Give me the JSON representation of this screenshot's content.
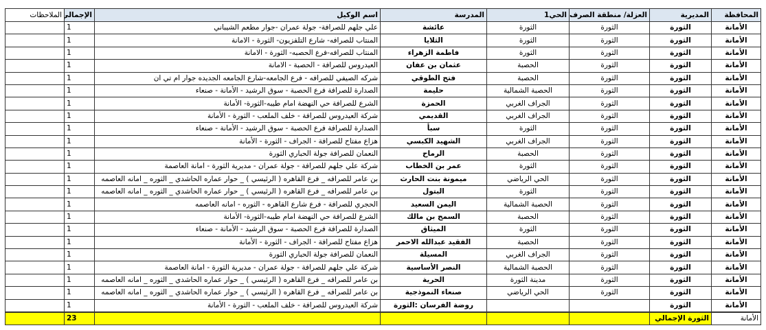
{
  "headers": {
    "governorate": "المحافظة",
    "district": "المديرية",
    "area": "العزلة/ منطقة الصرف",
    "neighborhood": "الحي1",
    "school": "المدرسة",
    "agent": "اسم الوكيل",
    "total": "الإجمالي",
    "notes": "الملاحظات"
  },
  "rows": [
    {
      "governorate": "الأمانة",
      "district": "الثورة",
      "area": "الثورة",
      "neighborhood": "الثورة",
      "school": "عائشة",
      "agent": "علي جلهم للصرافة- جولة عمران -جوار مطعم الشيباني",
      "total": "1",
      "notes": ""
    },
    {
      "governorate": "الأمانة",
      "district": "الثورة",
      "area": "الثورة",
      "neighborhood": "الثورة",
      "school": "الثلايا",
      "agent": "المنتاب للصرافه- شارع التلفزيون- الثورة - الامانة",
      "total": "1",
      "notes": ""
    },
    {
      "governorate": "الأمانة",
      "district": "الثورة",
      "area": "الثورة",
      "neighborhood": "الثورة",
      "school": "فاطمة الزهراء",
      "agent": "المنتاب للصرافه-فرع الحصبه- الثورة - الامانة",
      "total": "1",
      "notes": ""
    },
    {
      "governorate": "الأمانة",
      "district": "الثورة",
      "area": "الثورة",
      "neighborhood": "الحصبة",
      "school": "عثمان بن عفان",
      "agent": "العيدروس للصرافة - الحصبة - الامانة",
      "total": "1",
      "notes": ""
    },
    {
      "governorate": "الأمانة",
      "district": "الثورة",
      "area": "الثورة",
      "neighborhood": "الحصبة",
      "school": "فتح الطوقي",
      "agent": "شركه الصيفي للصرافه - فرع الجامعه-شارع الجامعه الجديده  جوار ام تي ان",
      "total": "1",
      "notes": ""
    },
    {
      "governorate": "الأمانة",
      "district": "الثورة",
      "area": "الثورة",
      "neighborhood": "الحصبة الشمالية",
      "school": "حليمة",
      "agent": "الصدارة للصرافة فرع الحصبة - سوق الرشيد - الأمانة - صنعاء",
      "total": "1",
      "notes": ""
    },
    {
      "governorate": "الأمانة",
      "district": "الثورة",
      "area": "الثورة",
      "neighborhood": "الجراف الغربي",
      "school": "الحمزة",
      "agent": "الشرع للصرافة حي النهضة امام طيبه-الثورة- الأمانة",
      "total": "1",
      "notes": ""
    },
    {
      "governorate": "الأمانة",
      "district": "الثورة",
      "area": "الثورة",
      "neighborhood": "الجراف الغربي",
      "school": "القديمي",
      "agent": "شركة العيدروس للصرافة - خلف الملعب - الثورة - الأمانة",
      "total": "1",
      "notes": ""
    },
    {
      "governorate": "الأمانة",
      "district": "الثورة",
      "area": "الثورة",
      "neighborhood": "الثورة",
      "school": "سبأ",
      "agent": "الصدارة للصرافة فرع الحصبة - سوق الرشيد - الأمانة - صنعاء",
      "total": "1",
      "notes": ""
    },
    {
      "governorate": "الأمانة",
      "district": "الثورة",
      "area": "الثورة",
      "neighborhood": "الجراف الغربي",
      "school": "الشهيد الكبسي",
      "agent": "هزاع مفتاح للصرافة - الجراف - الثورة - الأمانة",
      "total": "1",
      "notes": ""
    },
    {
      "governorate": "الأمانة",
      "district": "الثورة",
      "area": "الثورة",
      "neighborhood": "الحصبة",
      "school": "الرماح",
      "agent": "النعمان للصرافة جولة الحباري الثورة",
      "total": "1",
      "notes": ""
    },
    {
      "governorate": "الأمانة",
      "district": "الثورة",
      "area": "الثورة",
      "neighborhood": "الثورة",
      "school": "عمر بن الخطاب",
      "agent": "شركة علي جلهم للصرافة - جولة عمران - مديرية الثورة - امانة العاصمة",
      "total": "1",
      "notes": ""
    },
    {
      "governorate": "الأمانة",
      "district": "الثورة",
      "area": "الثورة",
      "neighborhood": "الحي الرياضي",
      "school": "ميمونة بنت الحارث",
      "agent": "بن عامر للصرافه _ فرع القاهره ( الرئيسي ) _ حوار عماره الحاشدي _ الثوره _ امانه العاصمه",
      "total": "1",
      "notes": ""
    },
    {
      "governorate": "الأمانة",
      "district": "الثورة",
      "area": "الثورة",
      "neighborhood": "الثورة",
      "school": "البتول",
      "agent": "بن عامر للصرافه _ فرع القاهره ( الرئيسي ) _ حوار عماره الحاشدي _ الثوره _ امانه العاصمه",
      "total": "1",
      "notes": ""
    },
    {
      "governorate": "الأمانة",
      "district": "الثورة",
      "area": "الثورة",
      "neighborhood": "الحصبة الشمالية",
      "school": "اليمن السعيد",
      "agent": "الحجري للصرافة - فرع شارع القاهره - الثوره - امانه العاصمه",
      "total": "1",
      "notes": ""
    },
    {
      "governorate": "الأمانة",
      "district": "الثورة",
      "area": "الثورة",
      "neighborhood": "الحصبة",
      "school": "السمح بن مالك",
      "agent": "الشرع للصرافة حي النهضة امام طيبه-الثورة- الأمانة",
      "total": "1",
      "notes": ""
    },
    {
      "governorate": "الأمانة",
      "district": "الثورة",
      "area": "الثورة",
      "neighborhood": "الثورة",
      "school": "الميثاق",
      "agent": "الصدارة للصرافة فرع الحصبة - سوق الرشيد - الأمانة - صنعاء",
      "total": "1",
      "notes": ""
    },
    {
      "governorate": "الأمانة",
      "district": "الثورة",
      "area": "الثورة",
      "neighborhood": "الحصبة",
      "school": "الفقيد عبدالله الاحمر",
      "agent": "هزاع مفتاح للصرافة - الجراف - الثورة - الأمانة",
      "total": "1",
      "notes": ""
    },
    {
      "governorate": "الأمانة",
      "district": "الثورة",
      "area": "الثورة",
      "neighborhood": "الجراف الغربي",
      "school": "المسيلة",
      "agent": "النعمان للصرافة جولة الحباري الثورة",
      "total": "1",
      "notes": ""
    },
    {
      "governorate": "الأمانة",
      "district": "الثورة",
      "area": "الثورة",
      "neighborhood": "الحصبة الشمالية",
      "school": "النصر الأساسية",
      "agent": "شركة علي جلهم للصرافة - جولة عمران - مديرية الثورة - امانة العاصمة",
      "total": "1",
      "notes": ""
    },
    {
      "governorate": "الأمانة",
      "district": "الثورة",
      "area": "الثورة",
      "neighborhood": "مدينة الثورة",
      "school": "الحرية",
      "agent": "بن عامر للصرافه _ فرع القاهره ( الرئيسي ) _ حوار عماره الحاشدي _ الثوره _ امانه العاصمه",
      "total": "1",
      "notes": ""
    },
    {
      "governorate": "الأمانة",
      "district": "الثورة",
      "area": "الثورة",
      "neighborhood": "الحي الرياضي",
      "school": "صنعاء النموذجية",
      "agent": "بن عامر للصرافه _ فرع القاهره ( الرئيسي ) _ حوار عماره الحاشدي _ الثوره _ امانه العاصمه",
      "total": "1",
      "notes": ""
    },
    {
      "governorate": "الأمانة",
      "district": "الثورة",
      "area": "",
      "neighborhood": "",
      "school": "روضة الفرسان :الثورة",
      "agent": "شركة العيدروس للصرافة - خلف الملعب - الثورة - الأمانة",
      "total": "1",
      "notes": ""
    }
  ],
  "total_row": {
    "governorate": "الأمانة",
    "district": "الثورة الإجمالي",
    "total": "23"
  },
  "colors": {
    "header_bg": "#dce6f1",
    "total_highlight": "#ffff00"
  }
}
